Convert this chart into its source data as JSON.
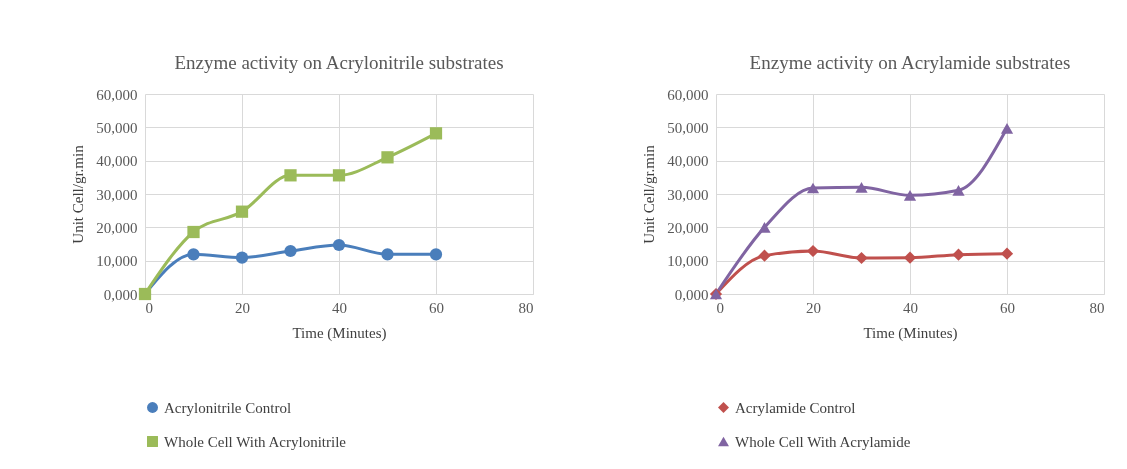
{
  "chart_data": [
    {
      "type": "line",
      "title": "Enzyme activity on Acrylonitrile substrates",
      "xlabel": "Time (Minutes)",
      "ylabel": "Unit Cell/gr.min",
      "x": [
        0,
        10,
        20,
        30,
        40,
        50,
        60
      ],
      "series": [
        {
          "name": "Acrylonitrile Control",
          "color": "#4a7ebb",
          "marker": "circle",
          "values": [
            0,
            11.9,
            10.9,
            12.9,
            14.7,
            11.9,
            11.9
          ]
        },
        {
          "name": "Whole Cell With Acrylonitrile",
          "color": "#9bbb59",
          "marker": "square",
          "values": [
            0,
            18.6,
            24.7,
            35.6,
            35.6,
            41.0,
            48.2
          ]
        }
      ],
      "xlim": [
        0,
        80
      ],
      "xticks": [
        0,
        20,
        40,
        60,
        80
      ],
      "ylim": [
        0,
        60
      ],
      "yticks": [
        {
          "value": 0,
          "label": "0,000"
        },
        {
          "value": 10,
          "label": "10,000"
        },
        {
          "value": 20,
          "label": "20,000"
        },
        {
          "value": 30,
          "label": "30,000"
        },
        {
          "value": 40,
          "label": "40,000"
        },
        {
          "value": 50,
          "label": "50,000"
        },
        {
          "value": 60,
          "label": "60,000"
        }
      ],
      "grid": true,
      "legend": "bottom"
    },
    {
      "type": "line",
      "title": "Enzyme activity on Acrylamide substrates",
      "xlabel": "Time (Minutes)",
      "ylabel": "Unit Cell/gr.min",
      "x": [
        0,
        10,
        20,
        30,
        40,
        50,
        60
      ],
      "series": [
        {
          "name": "Acrylamide Control",
          "color": "#c0504d",
          "marker": "diamond",
          "values": [
            0,
            11.5,
            12.9,
            10.8,
            10.9,
            11.8,
            12.1
          ]
        },
        {
          "name": "Whole Cell With Acrylamide",
          "color": "#8064a2",
          "marker": "triangle",
          "values": [
            0,
            20.0,
            31.8,
            32.0,
            29.6,
            31.1,
            49.7
          ]
        }
      ],
      "xlim": [
        0,
        80
      ],
      "xticks": [
        0,
        20,
        40,
        60,
        80
      ],
      "ylim": [
        0,
        60
      ],
      "yticks": [
        {
          "value": 0,
          "label": "0,000"
        },
        {
          "value": 10,
          "label": "10,000"
        },
        {
          "value": 20,
          "label": "20,000"
        },
        {
          "value": 30,
          "label": "30,000"
        },
        {
          "value": 40,
          "label": "40,000"
        },
        {
          "value": 50,
          "label": "50,000"
        },
        {
          "value": 60,
          "label": "60,000"
        }
      ],
      "grid": true,
      "legend": "bottom"
    }
  ]
}
